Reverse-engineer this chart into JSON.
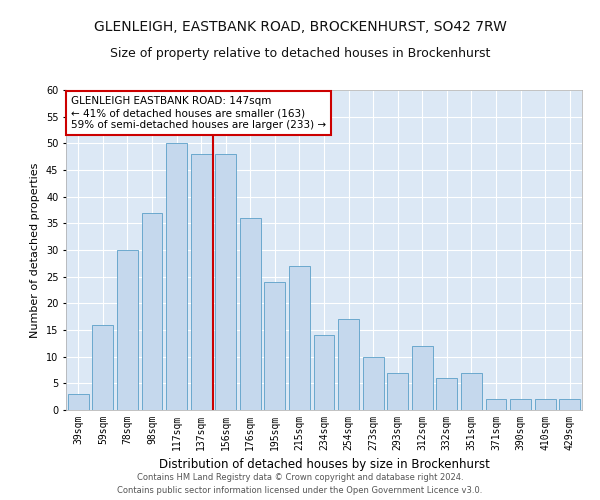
{
  "title1": "GLENLEIGH, EASTBANK ROAD, BROCKENHURST, SO42 7RW",
  "title2": "Size of property relative to detached houses in Brockenhurst",
  "xlabel": "Distribution of detached houses by size in Brockenhurst",
  "ylabel": "Number of detached properties",
  "categories": [
    "39sqm",
    "59sqm",
    "78sqm",
    "98sqm",
    "117sqm",
    "137sqm",
    "156sqm",
    "176sqm",
    "195sqm",
    "215sqm",
    "234sqm",
    "254sqm",
    "273sqm",
    "293sqm",
    "312sqm",
    "332sqm",
    "351sqm",
    "371sqm",
    "390sqm",
    "410sqm",
    "429sqm"
  ],
  "values": [
    3,
    16,
    30,
    37,
    50,
    48,
    48,
    36,
    24,
    27,
    14,
    17,
    10,
    7,
    12,
    6,
    7,
    2,
    2,
    2,
    2
  ],
  "bar_color": "#c5d8ed",
  "bar_edge_color": "#5a9fc8",
  "ylim": [
    0,
    60
  ],
  "yticks": [
    0,
    5,
    10,
    15,
    20,
    25,
    30,
    35,
    40,
    45,
    50,
    55,
    60
  ],
  "vline_x": 5.5,
  "vline_color": "#cc0000",
  "annotation_text": "GLENLEIGH EASTBANK ROAD: 147sqm\n← 41% of detached houses are smaller (163)\n59% of semi-detached houses are larger (233) →",
  "annotation_box_color": "#ffffff",
  "annotation_box_edge": "#cc0000",
  "footnote1": "Contains HM Land Registry data © Crown copyright and database right 2024.",
  "footnote2": "Contains public sector information licensed under the Open Government Licence v3.0.",
  "plot_background": "#dce8f5",
  "title_fontsize": 10,
  "subtitle_fontsize": 9,
  "tick_fontsize": 7,
  "ylabel_fontsize": 8,
  "xlabel_fontsize": 8.5,
  "footnote_fontsize": 6,
  "annotation_fontsize": 7.5
}
